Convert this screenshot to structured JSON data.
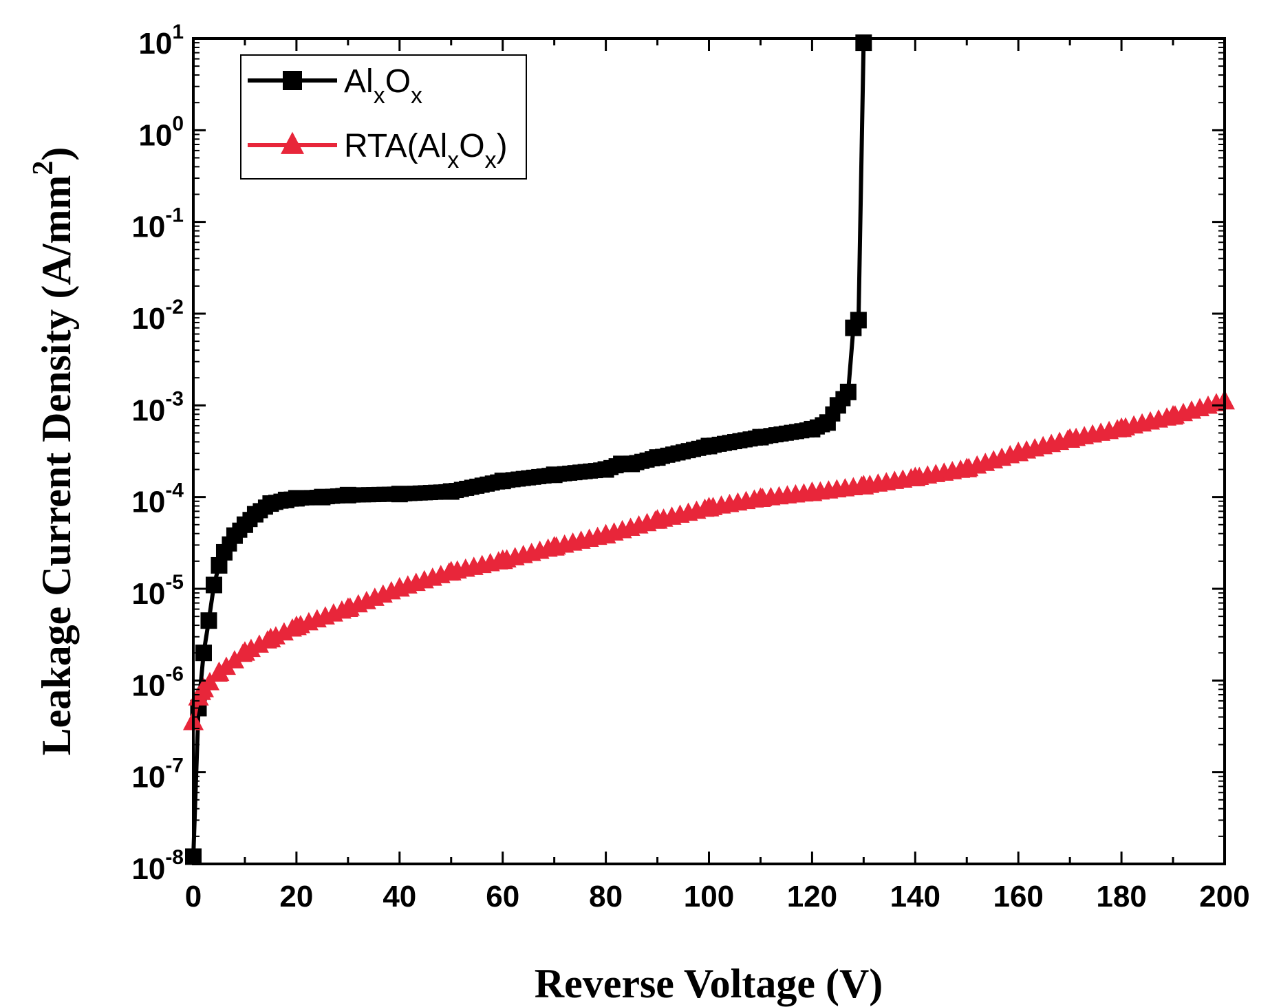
{
  "chart_data": {
    "type": "line",
    "title": "",
    "xlabel": "Reverse Voltage (V)",
    "ylabel": "Leakage Current Density (A/mm",
    "ylabel_sup": "2",
    "ylabel_close": ")",
    "yscale": "log",
    "xlim": [
      0,
      200
    ],
    "ylim_exp": [
      -8,
      1
    ],
    "x_ticks": [
      "0",
      "20",
      "40",
      "60",
      "80",
      "100",
      "120",
      "140",
      "160",
      "180",
      "200"
    ],
    "y_ticks": [
      {
        "base": "10",
        "exp": "-8"
      },
      {
        "base": "10",
        "exp": "-7"
      },
      {
        "base": "10",
        "exp": "-6"
      },
      {
        "base": "10",
        "exp": "-5"
      },
      {
        "base": "10",
        "exp": "-4"
      },
      {
        "base": "10",
        "exp": "-3"
      },
      {
        "base": "10",
        "exp": "-2"
      },
      {
        "base": "10",
        "exp": "-1"
      },
      {
        "base": "10",
        "exp": "0"
      },
      {
        "base": "10",
        "exp": "1"
      }
    ],
    "legend_position": "top-left",
    "series": [
      {
        "name": "AlxOx",
        "label_parts": [
          [
            "Al",
            ""
          ],
          [
            "x",
            "sub"
          ],
          [
            "O",
            ""
          ],
          [
            "x",
            "sub"
          ]
        ],
        "color": "#000000",
        "marker": "square",
        "x": [
          0,
          1,
          2,
          3,
          4,
          5,
          6,
          8,
          10,
          12,
          15,
          18,
          20,
          25,
          30,
          40,
          50,
          60,
          70,
          80,
          83,
          85,
          90,
          100,
          110,
          120,
          123,
          125,
          127,
          128,
          129,
          130
        ],
        "y": [
          1.2e-08,
          5e-07,
          2e-06,
          4.5e-06,
          1.1e-05,
          1.8e-05,
          2.5e-05,
          3.8e-05,
          5e-05,
          6.5e-05,
          8.5e-05,
          9.3e-05,
          9.7e-05,
          0.0001,
          0.000105,
          0.000108,
          0.000115,
          0.00015,
          0.000175,
          0.0002,
          0.00023,
          0.00023,
          0.00027,
          0.00036,
          0.00045,
          0.00055,
          0.00065,
          0.001,
          0.0014,
          0.007,
          0.0085,
          9.0
        ]
      },
      {
        "name": "RTA(AlxOx)",
        "label_parts": [
          [
            "RTA(Al",
            ""
          ],
          [
            "x",
            "sub"
          ],
          [
            "O",
            ""
          ],
          [
            "x",
            "sub"
          ],
          [
            ")",
            ""
          ]
        ],
        "color": "#e8263a",
        "marker": "triangle",
        "x": [
          0,
          1,
          2,
          5,
          10,
          15,
          20,
          30,
          40,
          50,
          60,
          70,
          80,
          90,
          100,
          110,
          120,
          130,
          140,
          150,
          160,
          170,
          180,
          190,
          200
        ],
        "y": [
          3.5e-07,
          6.5e-07,
          8e-07,
          1.2e-06,
          2e-06,
          2.8e-06,
          3.8e-06,
          6e-06,
          1e-05,
          1.5e-05,
          2e-05,
          2.8e-05,
          3.8e-05,
          5.5e-05,
          7.5e-05,
          9.5e-05,
          0.00011,
          0.00013,
          0.00016,
          0.0002,
          0.0003,
          0.00042,
          0.00055,
          0.00075,
          0.0011
        ]
      }
    ]
  }
}
